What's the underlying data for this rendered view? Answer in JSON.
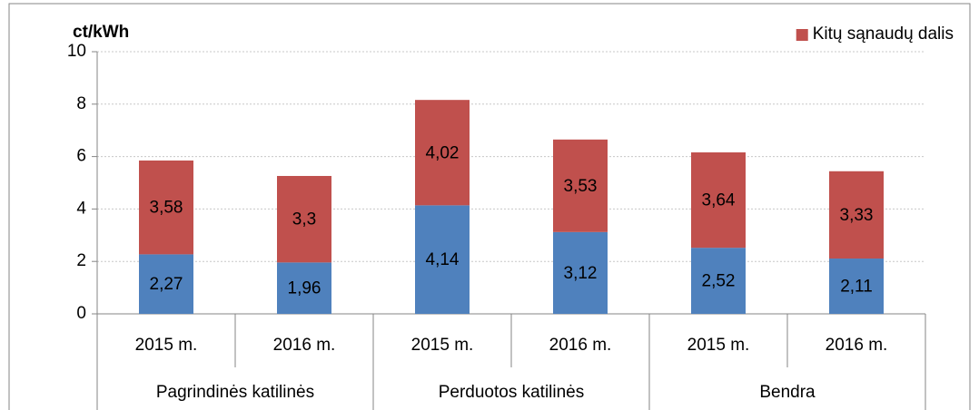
{
  "chart_data": {
    "type": "stacked_bar",
    "y_label": "ct/kWh",
    "categories": [
      "2015 m.",
      "2016 m.",
      "2015 m.",
      "2016 m.",
      "2015 m.",
      "2016 m."
    ],
    "groups": [
      "Pagrindinės katilinės",
      "Perduotos katilinės",
      "Bendra"
    ],
    "series": [
      {
        "color": "#4f81bd",
        "values": [
          2.27,
          1.96,
          4.14,
          3.12,
          2.52,
          2.11
        ],
        "value_labels": [
          "2,27",
          "1,96",
          "4,14",
          "3,12",
          "2,52",
          "2,11"
        ]
      },
      {
        "name": "Kitų sąnaudų dalis",
        "color": "#c0504d",
        "values": [
          3.58,
          3.3,
          4.02,
          3.53,
          3.64,
          3.33
        ],
        "value_labels": [
          "3,58",
          "3,3",
          "4,02",
          "3,53",
          "3,64",
          "3,33"
        ]
      }
    ],
    "ylim": [
      0,
      10
    ],
    "yticks": [
      0,
      2,
      4,
      6,
      8,
      10
    ],
    "grid": true,
    "legend": "top-right"
  }
}
